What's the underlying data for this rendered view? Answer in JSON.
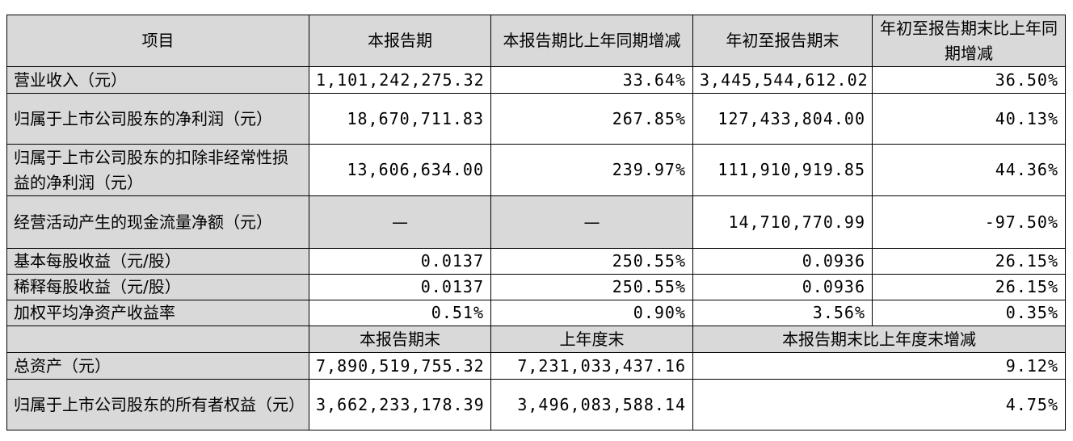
{
  "headers": {
    "item": "项目",
    "current": "本报告期",
    "current_yoy": "本报告期比上年同期增减",
    "ytd": "年初至报告期末",
    "ytd_yoy": "年初至报告期末比上年同期增减"
  },
  "rows": [
    {
      "label": "营业收入（元）",
      "current": "1,101,242,275.32",
      "current_yoy": "33.64%",
      "ytd": "3,445,544,612.02",
      "ytd_yoy": "36.50%"
    },
    {
      "label": "归属于上市公司股东的净利润（元）",
      "current": "18,670,711.83",
      "current_yoy": "267.85%",
      "ytd": "127,433,804.00",
      "ytd_yoy": "40.13%"
    },
    {
      "label": "归属于上市公司股东的扣除非经常性损益的净利润（元）",
      "current": "13,606,634.00",
      "current_yoy": "239.97%",
      "ytd": "111,910,919.85",
      "ytd_yoy": "44.36%"
    },
    {
      "label": "经营活动产生的现金流量净额（元）",
      "current": "—",
      "current_yoy": "—",
      "ytd": "14,710,770.99",
      "ytd_yoy": "-97.50%"
    },
    {
      "label": "基本每股收益（元/股）",
      "current": "0.0137",
      "current_yoy": "250.55%",
      "ytd": "0.0936",
      "ytd_yoy": "26.15%"
    },
    {
      "label": "稀释每股收益（元/股）",
      "current": "0.0137",
      "current_yoy": "250.55%",
      "ytd": "0.0936",
      "ytd_yoy": "26.15%"
    },
    {
      "label": "加权平均净资产收益率",
      "current": "0.51%",
      "current_yoy": "0.90%",
      "ytd": "3.56%",
      "ytd_yoy": "0.35%"
    }
  ],
  "headers2": {
    "period_end": "本报告期末",
    "prior_year_end": "上年度末",
    "change": "本报告期末比上年度末增减"
  },
  "rows2": [
    {
      "label": "总资产（元）",
      "period_end": "7,890,519,755.32",
      "prior_year_end": "7,231,033,437.16",
      "change": "9.12%"
    },
    {
      "label": "归属于上市公司股东的所有者权益（元）",
      "period_end": "3,662,233,178.39",
      "prior_year_end": "3,496,083,588.14",
      "change": "4.75%"
    }
  ]
}
